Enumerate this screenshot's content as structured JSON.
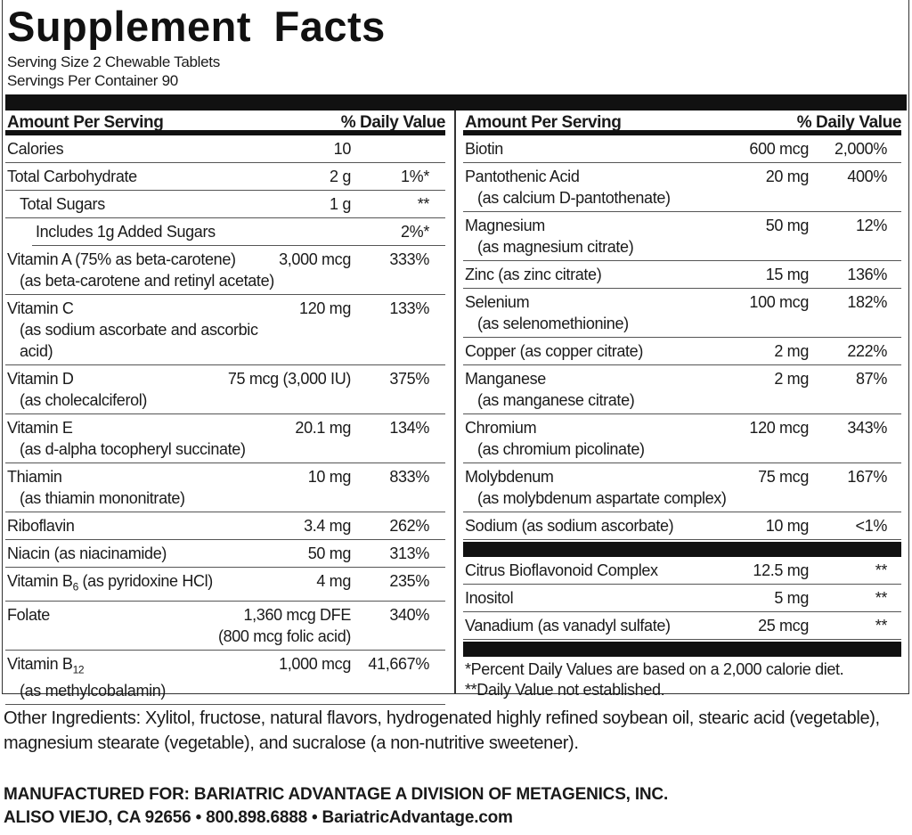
{
  "title": "Supplement Facts",
  "serving_size": "Serving Size 2 Chewable Tablets",
  "servings_per_container": "Servings Per Container 90",
  "header": {
    "amount": "Amount Per Serving",
    "dv": "% Daily Value"
  },
  "left_rows": [
    {
      "name": "Calories",
      "amount": "10",
      "dv": ""
    },
    {
      "name": "Total Carbohydrate",
      "amount": "2 g",
      "dv": "1%*"
    },
    {
      "name": "Total Sugars",
      "amount": "1 g",
      "dv": "**",
      "indent": 1
    },
    {
      "name": "Includes 1g Added Sugars",
      "amount": "",
      "dv": "2%*",
      "indent": 2
    },
    {
      "name": "Vitamin A (75% as beta-carotene)",
      "sub": "(as beta-carotene and retinyl acetate)",
      "amount": "3,000 mcg",
      "dv": "333%"
    },
    {
      "name": "Vitamin C",
      "sub": "(as sodium ascorbate and ascorbic acid)",
      "amount": "120 mg",
      "dv": "133%"
    },
    {
      "name": "Vitamin D",
      "sub": "(as cholecalciferol)",
      "amount": "75 mcg (3,000 IU)",
      "dv": "375%"
    },
    {
      "name": "Vitamin E",
      "sub": "(as d-alpha tocopheryl succinate)",
      "amount": "20.1 mg",
      "dv": "134%"
    },
    {
      "name": "Thiamin",
      "sub": "(as thiamin mononitrate)",
      "amount": "10 mg",
      "dv": "833%"
    },
    {
      "name": "Riboflavin",
      "amount": "3.4 mg",
      "dv": "262%"
    },
    {
      "name": "Niacin (as niacinamide)",
      "amount": "50 mg",
      "dv": "313%"
    },
    {
      "name": "Vitamin B",
      "subscript": "6",
      "name_after": " (as pyridoxine HCl)",
      "amount": "4 mg",
      "dv": "235%"
    },
    {
      "name": "Folate",
      "amount": "1,360 mcg DFE",
      "amount2": "(800 mcg folic acid)",
      "dv": "340%"
    },
    {
      "name": "Vitamin B",
      "subscript": "12",
      "sub": "(as methylcobalamin)",
      "amount": "1,000 mcg",
      "dv": "41,667%"
    }
  ],
  "right_rows": [
    {
      "name": "Biotin",
      "amount": "600 mcg",
      "dv": "2,000%"
    },
    {
      "name": "Pantothenic Acid",
      "sub": "(as calcium D-pantothenate)",
      "amount": "20 mg",
      "dv": "400%"
    },
    {
      "name": "Magnesium",
      "sub": "(as magnesium citrate)",
      "amount": "50 mg",
      "dv": "12%"
    },
    {
      "name": "Zinc (as zinc citrate)",
      "amount": "15 mg",
      "dv": "136%"
    },
    {
      "name": "Selenium",
      "sub": "(as selenomethionine)",
      "amount": "100 mcg",
      "dv": "182%"
    },
    {
      "name": "Copper (as copper citrate)",
      "amount": "2 mg",
      "dv": "222%"
    },
    {
      "name": "Manganese",
      "sub": "(as manganese citrate)",
      "amount": "2 mg",
      "dv": "87%"
    },
    {
      "name": "Chromium",
      "sub": "(as chromium picolinate)",
      "amount": "120 mcg",
      "dv": "343%"
    },
    {
      "name": "Molybdenum",
      "sub": "(as molybdenum aspartate complex)",
      "amount": "75 mcg",
      "dv": "167%"
    },
    {
      "name": "Sodium (as sodium ascorbate)",
      "amount": "10 mg",
      "dv": "<1%"
    }
  ],
  "right_rows_2": [
    {
      "name": "Citrus Bioflavonoid Complex",
      "amount": "12.5 mg",
      "dv": "**"
    },
    {
      "name": "Inositol",
      "amount": "5 mg",
      "dv": "**"
    },
    {
      "name": "Vanadium (as vanadyl sulfate)",
      "amount": "25 mcg",
      "dv": "**"
    }
  ],
  "footnote1": " *Percent Daily Values are based on a 2,000 calorie diet.",
  "footnote2": "**Daily Value not established.",
  "other_ingredients": "Other Ingredients: Xylitol, fructose, natural flavors, hydrogenated highly refined soybean oil, stearic acid (vegetable), magnesium stearate (vegetable), and sucralose (a non-nutritive sweetener).",
  "manufacturer_line1": "MANUFACTURED FOR: BARIATRIC ADVANTAGE A DIVISION OF METAGENICS, INC.",
  "manufacturer_line2": "ALISO VIEJO, CA 92656 • 800.898.6888 • BariatricAdvantage.com"
}
